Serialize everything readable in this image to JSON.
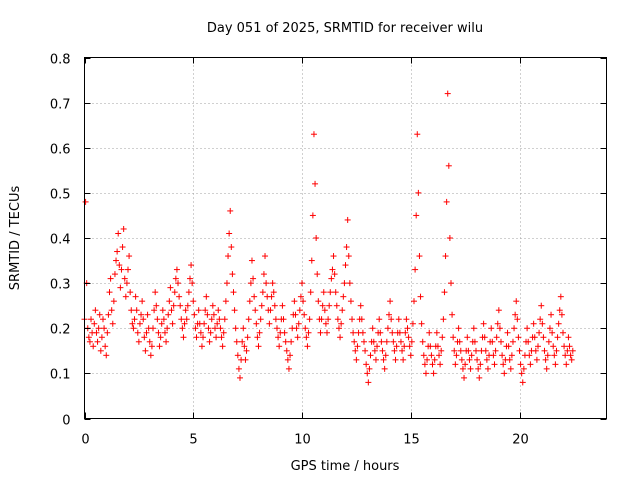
{
  "chart_data": {
    "type": "scatter",
    "title": "Day 051 of 2025, SRMTID for receiver wilu",
    "xlabel": "GPS time / hours",
    "ylabel": "SRMTID / TECUs",
    "xlim": [
      0,
      24
    ],
    "ylim": [
      0,
      0.8
    ],
    "xticks": [
      0,
      5,
      10,
      15,
      20
    ],
    "yticks": [
      0,
      0.1,
      0.2,
      0.3,
      0.4,
      0.5,
      0.6,
      0.7,
      0.8
    ],
    "grid": true,
    "marker": "plus",
    "color": "#ff0000",
    "sample_interval_hours": 0.05,
    "series": [
      {
        "name": "SRMTID",
        "x_start": 0.0,
        "x_step": 0.05,
        "values": [
          0.22,
          0.48,
          0.3,
          0.2,
          0.18,
          0.17,
          0.22,
          0.19,
          0.16,
          0.21,
          0.24,
          0.19,
          0.17,
          0.2,
          0.23,
          0.15,
          0.18,
          0.22,
          0.2,
          0.16,
          0.14,
          0.19,
          0.23,
          0.28,
          0.31,
          0.24,
          0.21,
          0.26,
          0.32,
          0.35,
          0.37,
          0.41,
          0.34,
          0.29,
          0.33,
          0.38,
          0.42,
          0.31,
          0.27,
          0.3,
          0.33,
          0.36,
          0.28,
          0.24,
          0.21,
          0.2,
          0.22,
          0.27,
          0.24,
          0.19,
          0.17,
          0.21,
          0.23,
          0.26,
          0.22,
          0.18,
          0.15,
          0.19,
          0.23,
          0.2,
          0.17,
          0.14,
          0.16,
          0.2,
          0.24,
          0.28,
          0.25,
          0.22,
          0.19,
          0.16,
          0.18,
          0.21,
          0.24,
          0.22,
          0.19,
          0.17,
          0.2,
          0.23,
          0.26,
          0.29,
          0.24,
          0.21,
          0.25,
          0.28,
          0.31,
          0.33,
          0.3,
          0.27,
          0.25,
          0.22,
          0.2,
          0.18,
          0.21,
          0.24,
          0.22,
          0.25,
          0.28,
          0.31,
          0.34,
          0.3,
          0.26,
          0.23,
          0.2,
          0.18,
          0.21,
          0.24,
          0.21,
          0.19,
          0.16,
          0.18,
          0.21,
          0.24,
          0.27,
          0.23,
          0.2,
          0.17,
          0.19,
          0.22,
          0.25,
          0.23,
          0.2,
          0.18,
          0.21,
          0.24,
          0.22,
          0.2,
          0.18,
          0.16,
          0.19,
          0.22,
          0.26,
          0.3,
          0.36,
          0.41,
          0.46,
          0.38,
          0.32,
          0.28,
          0.24,
          0.2,
          0.17,
          0.14,
          0.11,
          0.09,
          0.13,
          0.17,
          0.2,
          0.16,
          0.13,
          0.15,
          0.18,
          0.22,
          0.26,
          0.3,
          0.35,
          0.31,
          0.27,
          0.24,
          0.21,
          0.18,
          0.16,
          0.19,
          0.22,
          0.25,
          0.28,
          0.32,
          0.36,
          0.3,
          0.27,
          0.24,
          0.21,
          0.24,
          0.27,
          0.3,
          0.28,
          0.25,
          0.22,
          0.2,
          0.18,
          0.16,
          0.19,
          0.22,
          0.25,
          0.22,
          0.19,
          0.17,
          0.15,
          0.13,
          0.11,
          0.14,
          0.17,
          0.2,
          0.23,
          0.26,
          0.23,
          0.2,
          0.18,
          0.21,
          0.24,
          0.27,
          0.3,
          0.26,
          0.23,
          0.2,
          0.18,
          0.16,
          0.19,
          0.22,
          0.28,
          0.35,
          0.45,
          0.63,
          0.52,
          0.4,
          0.32,
          0.26,
          0.22,
          0.19,
          0.22,
          0.25,
          0.28,
          0.24,
          0.21,
          0.19,
          0.22,
          0.25,
          0.28,
          0.31,
          0.33,
          0.36,
          0.32,
          0.28,
          0.25,
          0.22,
          0.2,
          0.18,
          0.21,
          0.24,
          0.27,
          0.3,
          0.34,
          0.38,
          0.44,
          0.36,
          0.3,
          0.26,
          0.22,
          0.19,
          0.17,
          0.15,
          0.13,
          0.16,
          0.19,
          0.22,
          0.25,
          0.22,
          0.19,
          0.17,
          0.15,
          0.12,
          0.1,
          0.08,
          0.11,
          0.14,
          0.17,
          0.2,
          0.17,
          0.15,
          0.13,
          0.16,
          0.19,
          0.22,
          0.19,
          0.17,
          0.15,
          0.13,
          0.11,
          0.14,
          0.17,
          0.2,
          0.23,
          0.26,
          0.22,
          0.19,
          0.17,
          0.15,
          0.13,
          0.16,
          0.19,
          0.22,
          0.19,
          0.17,
          0.15,
          0.13,
          0.16,
          0.19,
          0.22,
          0.2,
          0.18,
          0.16,
          0.14,
          0.17,
          0.21,
          0.26,
          0.33,
          0.45,
          0.63,
          0.5,
          0.36,
          0.27,
          0.21,
          0.17,
          0.14,
          0.12,
          0.1,
          0.13,
          0.16,
          0.19,
          0.16,
          0.14,
          0.12,
          0.1,
          0.13,
          0.16,
          0.19,
          0.16,
          0.14,
          0.12,
          0.15,
          0.18,
          0.22,
          0.28,
          0.36,
          0.48,
          0.72,
          0.56,
          0.4,
          0.3,
          0.23,
          0.18,
          0.15,
          0.12,
          0.14,
          0.17,
          0.2,
          0.17,
          0.15,
          0.13,
          0.11,
          0.09,
          0.12,
          0.15,
          0.18,
          0.15,
          0.13,
          0.11,
          0.14,
          0.17,
          0.2,
          0.17,
          0.15,
          0.13,
          0.11,
          0.09,
          0.12,
          0.15,
          0.18,
          0.21,
          0.18,
          0.15,
          0.13,
          0.11,
          0.14,
          0.17,
          0.2,
          0.17,
          0.14,
          0.12,
          0.15,
          0.18,
          0.21,
          0.24,
          0.2,
          0.17,
          0.14,
          0.12,
          0.1,
          0.13,
          0.16,
          0.19,
          0.16,
          0.13,
          0.11,
          0.14,
          0.17,
          0.2,
          0.23,
          0.26,
          0.22,
          0.18,
          0.15,
          0.12,
          0.1,
          0.08,
          0.11,
          0.14,
          0.17,
          0.2,
          0.17,
          0.14,
          0.12,
          0.15,
          0.18,
          0.21,
          0.18,
          0.15,
          0.13,
          0.16,
          0.19,
          0.22,
          0.25,
          0.21,
          0.18,
          0.15,
          0.13,
          0.11,
          0.14,
          0.17,
          0.2,
          0.23,
          0.19,
          0.16,
          0.14,
          0.12,
          0.15,
          0.18,
          0.21,
          0.24,
          0.27,
          0.23,
          0.19,
          0.16,
          0.14,
          0.12,
          0.15,
          0.18,
          0.16,
          0.14,
          0.13,
          0.15
        ]
      }
    ]
  }
}
